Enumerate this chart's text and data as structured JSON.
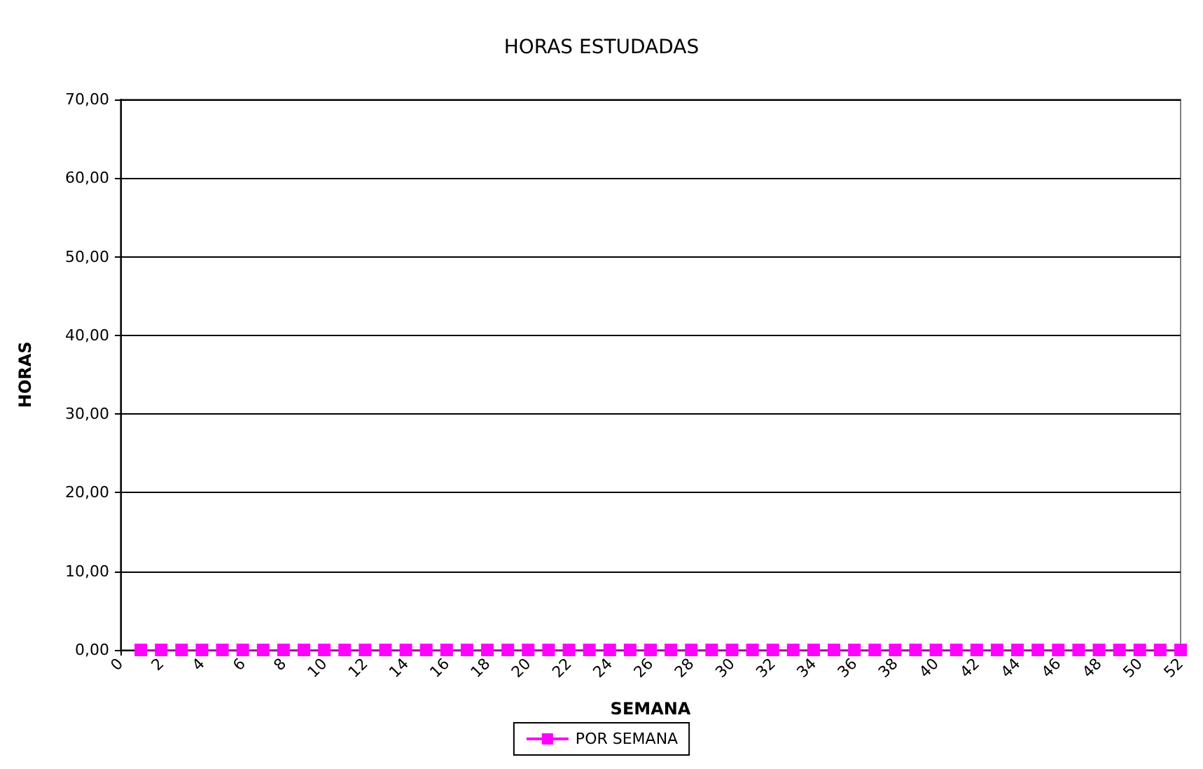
{
  "chart_data": {
    "type": "line",
    "title": "HORAS ESTUDADAS",
    "xlabel": "SEMANA",
    "ylabel": "HORAS",
    "x": [
      1,
      2,
      3,
      4,
      5,
      6,
      7,
      8,
      9,
      10,
      11,
      12,
      13,
      14,
      15,
      16,
      17,
      18,
      19,
      20,
      21,
      22,
      23,
      24,
      25,
      26,
      27,
      28,
      29,
      30,
      31,
      32,
      33,
      34,
      35,
      36,
      37,
      38,
      39,
      40,
      41,
      42,
      43,
      44,
      45,
      46,
      47,
      48,
      49,
      50,
      51,
      52
    ],
    "series": [
      {
        "name": "POR SEMANA",
        "color": "#ff00ff",
        "values": [
          0,
          0,
          0,
          0,
          0,
          0,
          0,
          0,
          0,
          0,
          0,
          0,
          0,
          0,
          0,
          0,
          0,
          0,
          0,
          0,
          0,
          0,
          0,
          0,
          0,
          0,
          0,
          0,
          0,
          0,
          0,
          0,
          0,
          0,
          0,
          0,
          0,
          0,
          0,
          0,
          0,
          0,
          0,
          0,
          0,
          0,
          0,
          0,
          0,
          0,
          0,
          0
        ]
      }
    ],
    "xlim": [
      0,
      52
    ],
    "xticks": [
      0,
      {
        "value": 1,
        "label": null
      },
      2,
      {
        "value": 3,
        "label": null
      },
      4,
      {
        "value": 5,
        "label": null
      },
      6,
      {
        "value": 7,
        "label": null
      },
      8,
      {
        "value": 9,
        "label": null
      },
      10,
      {
        "value": 11,
        "label": null
      },
      12,
      {
        "value": 13,
        "label": null
      },
      14,
      {
        "value": 15,
        "label": null
      },
      16,
      {
        "value": 17,
        "label": null
      },
      18,
      {
        "value": 19,
        "label": null
      },
      20,
      {
        "value": 21,
        "label": null
      },
      22,
      {
        "value": 23,
        "label": null
      },
      24,
      {
        "value": 25,
        "label": null
      },
      26,
      {
        "value": 27,
        "label": null
      },
      28,
      {
        "value": 29,
        "label": null
      },
      30,
      {
        "value": 31,
        "label": null
      },
      32,
      {
        "value": 33,
        "label": null
      },
      34,
      {
        "value": 35,
        "label": null
      },
      36,
      {
        "value": 37,
        "label": null
      },
      38,
      {
        "value": 39,
        "label": null
      },
      40,
      {
        "value": 41,
        "label": null
      },
      42,
      {
        "value": 43,
        "label": null
      },
      44,
      {
        "value": 45,
        "label": null
      },
      46,
      {
        "value": 47,
        "label": null
      },
      48,
      {
        "value": 49,
        "label": null
      },
      50,
      {
        "value": 51,
        "label": null
      },
      52
    ],
    "ylim": [
      0,
      70
    ],
    "yticks": [
      {
        "value": 0,
        "label": "0,00"
      },
      {
        "value": 10,
        "label": "10,00"
      },
      {
        "value": 20,
        "label": "20,00"
      },
      {
        "value": 30,
        "label": "30,00"
      },
      {
        "value": 40,
        "label": "40,00"
      },
      {
        "value": 50,
        "label": "50,00"
      },
      {
        "value": 60,
        "label": "60,00"
      },
      {
        "value": 70,
        "label": "70,00"
      }
    ],
    "grid": "y",
    "legend": "bottom",
    "marker": "square",
    "line_style": "solid"
  }
}
